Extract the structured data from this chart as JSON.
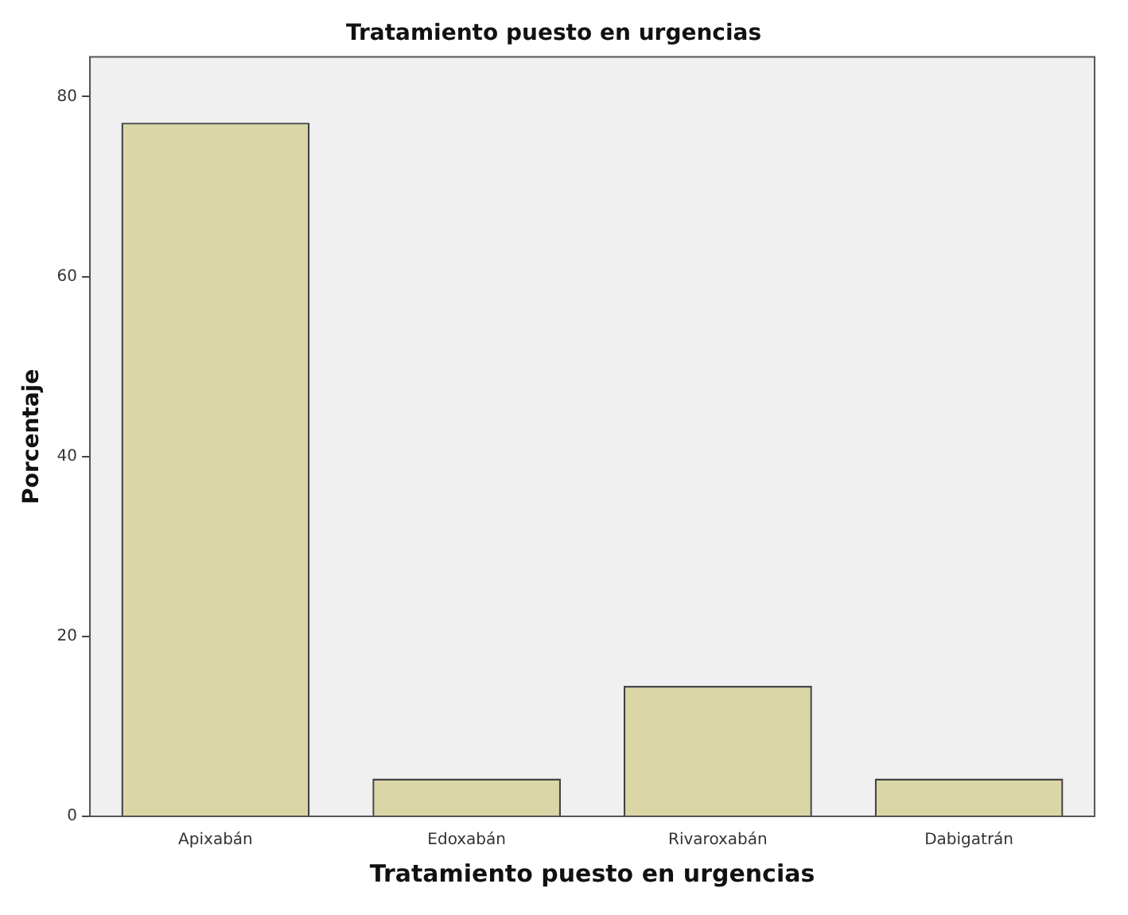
{
  "chart_data": {
    "type": "bar",
    "title": "Tratamiento puesto en urgencias",
    "xlabel": "Tratamiento puesto en urgencias",
    "ylabel": "Porcentaje",
    "categories": [
      "Apixabán",
      "Edoxabán",
      "Rivaroxabán",
      "Dabigatrán"
    ],
    "values": [
      77.1,
      4.2,
      14.5,
      4.2
    ],
    "color": "#dbd6a6",
    "ylim": [
      0,
      84.4
    ],
    "yticks": [
      0,
      20,
      40,
      60,
      80
    ],
    "grid": false,
    "legend": false
  }
}
